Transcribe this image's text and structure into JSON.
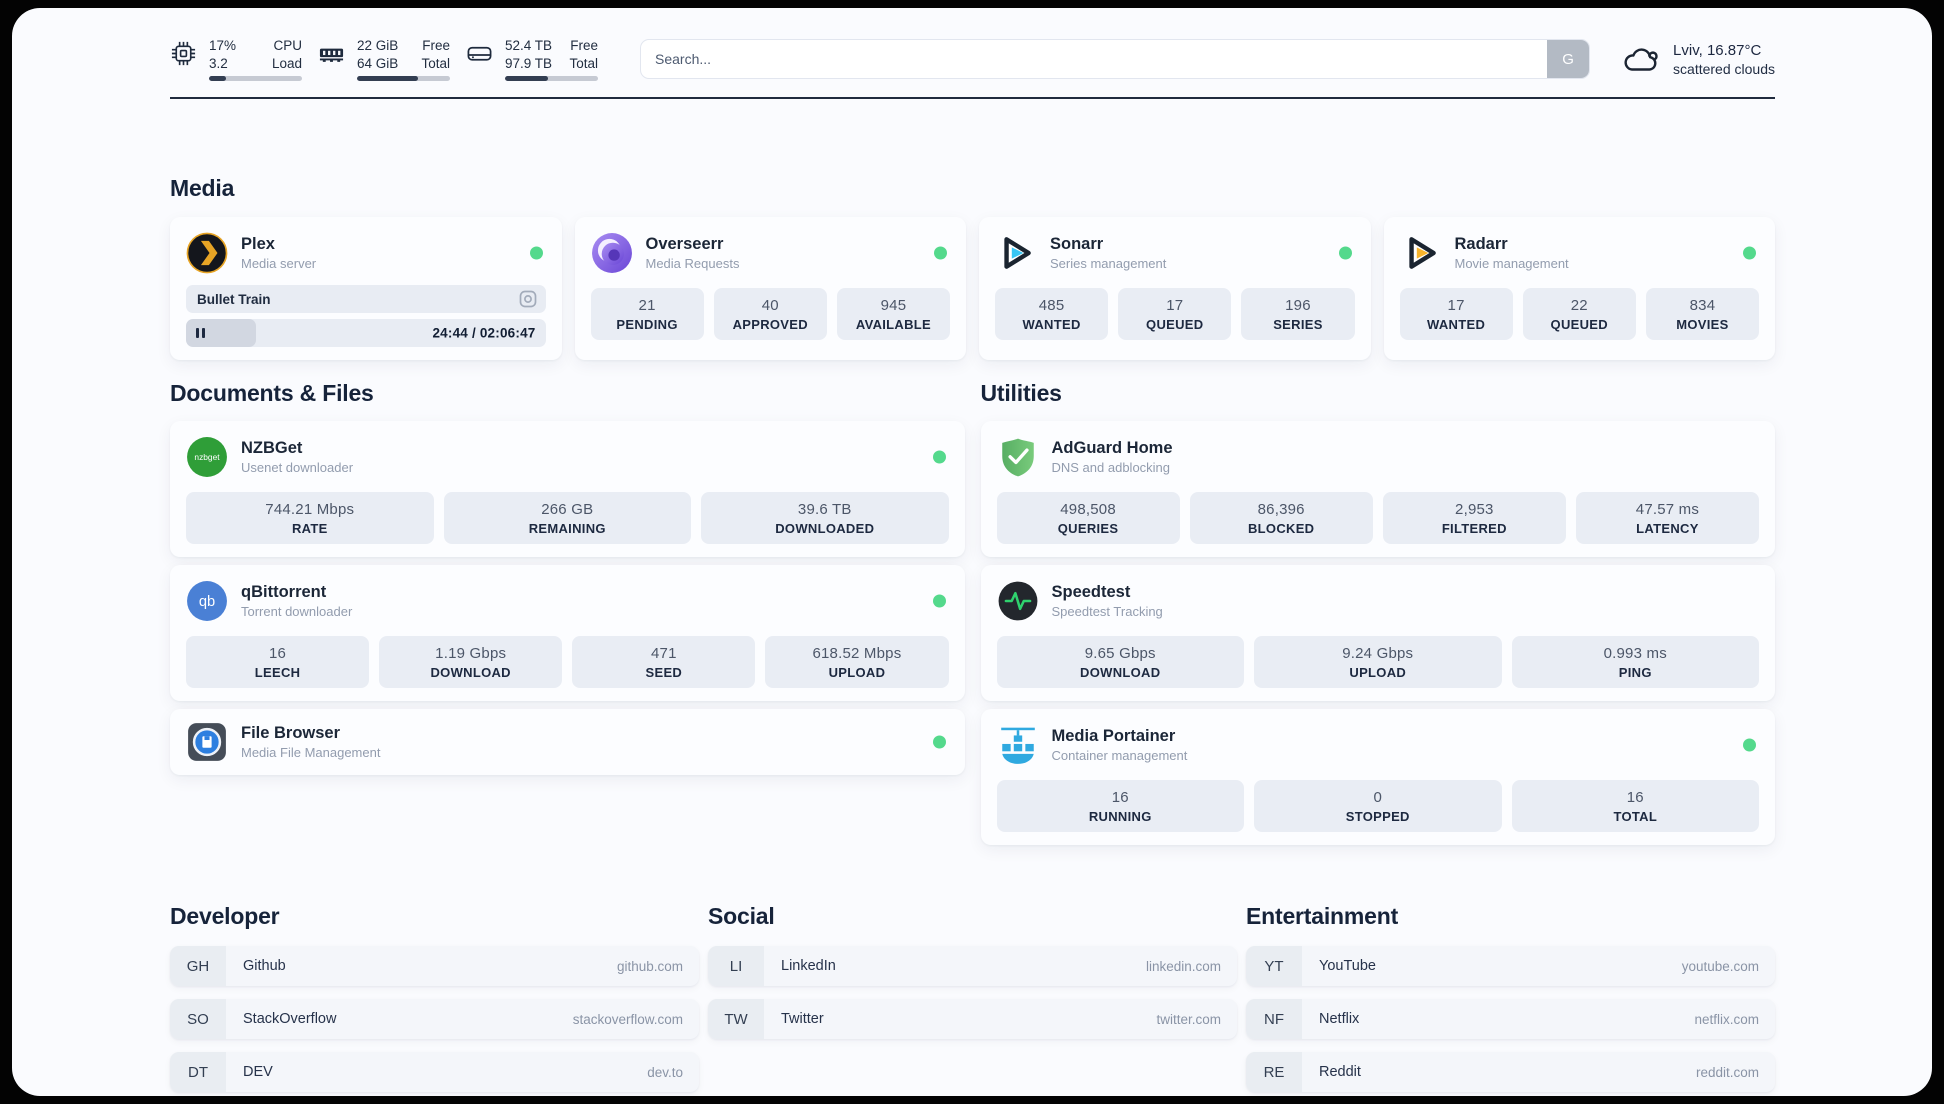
{
  "topbar": {
    "stats": [
      {
        "icon": "cpu-icon",
        "value1": "17%",
        "label1": "CPU",
        "value2": "3.2",
        "label2": "Load",
        "progress": 18
      },
      {
        "icon": "ram-icon",
        "value1": "22 GiB",
        "label1": "Free",
        "value2": "64 GiB",
        "label2": "Total",
        "progress": 66
      },
      {
        "icon": "disk-icon",
        "value1": "52.4 TB",
        "label1": "Free",
        "value2": "97.9 TB",
        "label2": "Total",
        "progress": 46
      }
    ],
    "search": {
      "placeholder": "Search...",
      "button": "G"
    },
    "weather": {
      "icon": "cloud-icon",
      "location": "Lviv, 16.87°C",
      "condition": "scattered clouds"
    }
  },
  "media": {
    "title": "Media",
    "apps": [
      {
        "name": "Plex",
        "subtitle": "Media server",
        "icon": "plex-icon",
        "online": true,
        "player": {
          "title": "Bullet Train",
          "time": "24:44 / 02:06:47",
          "progress_pct": 19.5
        }
      },
      {
        "name": "Overseerr",
        "subtitle": "Media Requests",
        "icon": "overseerr-icon",
        "online": true,
        "stats": [
          {
            "value": "21",
            "label": "PENDING"
          },
          {
            "value": "40",
            "label": "APPROVED"
          },
          {
            "value": "945",
            "label": "AVAILABLE"
          }
        ]
      },
      {
        "name": "Sonarr",
        "subtitle": "Series management",
        "icon": "sonarr-icon",
        "online": true,
        "stats": [
          {
            "value": "485",
            "label": "WANTED"
          },
          {
            "value": "17",
            "label": "QUEUED"
          },
          {
            "value": "196",
            "label": "SERIES"
          }
        ]
      },
      {
        "name": "Radarr",
        "subtitle": "Movie management",
        "icon": "radarr-icon",
        "online": true,
        "stats": [
          {
            "value": "17",
            "label": "WANTED"
          },
          {
            "value": "22",
            "label": "QUEUED"
          },
          {
            "value": "834",
            "label": "MOVIES"
          }
        ]
      }
    ]
  },
  "documents": {
    "title": "Documents & Files",
    "apps": [
      {
        "name": "NZBGet",
        "subtitle": "Usenet downloader",
        "icon": "nzbget-icon",
        "online": true,
        "stats": [
          {
            "value": "744.21 Mbps",
            "label": "RATE"
          },
          {
            "value": "266 GB",
            "label": "REMAINING"
          },
          {
            "value": "39.6 TB",
            "label": "DOWNLOADED"
          }
        ]
      },
      {
        "name": "qBittorrent",
        "subtitle": "Torrent downloader",
        "icon": "qbittorrent-icon",
        "online": true,
        "stats": [
          {
            "value": "16",
            "label": "LEECH"
          },
          {
            "value": "1.19 Gbps",
            "label": "DOWNLOAD"
          },
          {
            "value": "471",
            "label": "SEED"
          },
          {
            "value": "618.52 Mbps",
            "label": "UPLOAD"
          }
        ]
      },
      {
        "name": "File Browser",
        "subtitle": "Media File Management",
        "icon": "filebrowser-icon",
        "online": true,
        "stats": []
      }
    ]
  },
  "utilities": {
    "title": "Utilities",
    "apps": [
      {
        "name": "AdGuard Home",
        "subtitle": "DNS and adblocking",
        "icon": "adguard-icon",
        "online": false,
        "stats": [
          {
            "value": "498,508",
            "label": "QUERIES"
          },
          {
            "value": "86,396",
            "label": "BLOCKED"
          },
          {
            "value": "2,953",
            "label": "FILTERED"
          },
          {
            "value": "47.57 ms",
            "label": "LATENCY"
          }
        ]
      },
      {
        "name": "Speedtest",
        "subtitle": "Speedtest Tracking",
        "icon": "speedtest-icon",
        "online": false,
        "stats": [
          {
            "value": "9.65 Gbps",
            "label": "DOWNLOAD"
          },
          {
            "value": "9.24 Gbps",
            "label": "UPLOAD"
          },
          {
            "value": "0.993 ms",
            "label": "PING"
          }
        ]
      },
      {
        "name": "Media Portainer",
        "subtitle": "Container management",
        "icon": "portainer-icon",
        "online": true,
        "stats": [
          {
            "value": "16",
            "label": "RUNNING"
          },
          {
            "value": "0",
            "label": "STOPPED"
          },
          {
            "value": "16",
            "label": "TOTAL"
          }
        ]
      }
    ]
  },
  "bookmarks": [
    {
      "title": "Developer",
      "items": [
        {
          "abbr": "GH",
          "name": "Github",
          "url": "github.com"
        },
        {
          "abbr": "SO",
          "name": "StackOverflow",
          "url": "stackoverflow.com"
        },
        {
          "abbr": "DT",
          "name": "DEV",
          "url": "dev.to"
        }
      ]
    },
    {
      "title": "Social",
      "items": [
        {
          "abbr": "LI",
          "name": "LinkedIn",
          "url": "linkedin.com"
        },
        {
          "abbr": "TW",
          "name": "Twitter",
          "url": "twitter.com"
        }
      ]
    },
    {
      "title": "Entertainment",
      "items": [
        {
          "abbr": "YT",
          "name": "YouTube",
          "url": "youtube.com"
        },
        {
          "abbr": "NF",
          "name": "Netflix",
          "url": "netflix.com"
        },
        {
          "abbr": "RE",
          "name": "Reddit",
          "url": "reddit.com"
        }
      ]
    }
  ],
  "colors": {
    "status_online": "#54d98c",
    "divider": "#202b3e",
    "stat_box_bg": "#e9edf4",
    "topbar_progress_fill": "#333e52",
    "plex_brand": "#e7a425",
    "sonarr_brand": "#38c6f4",
    "radarr_brand": "#f7b42c"
  }
}
